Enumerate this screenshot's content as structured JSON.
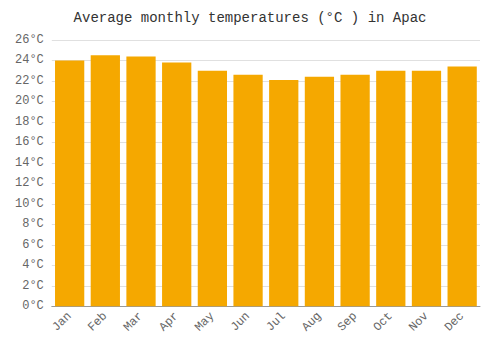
{
  "chart_data": {
    "type": "bar",
    "title": "Average monthly temperatures (°C ) in Apac",
    "categories": [
      "Jan",
      "Feb",
      "Mar",
      "Apr",
      "May",
      "Jun",
      "Jul",
      "Aug",
      "Sep",
      "Oct",
      "Nov",
      "Dec"
    ],
    "values": [
      24.0,
      24.5,
      24.4,
      23.8,
      23.0,
      22.6,
      22.1,
      22.4,
      22.6,
      23.0,
      23.0,
      23.4
    ],
    "color": "#F5A800",
    "ylim": [
      0,
      26
    ],
    "yticks": [
      {
        "value": 0,
        "label": "0°C"
      },
      {
        "value": 2,
        "label": "2°C"
      },
      {
        "value": 4,
        "label": "4°C"
      },
      {
        "value": 6,
        "label": "6°C"
      },
      {
        "value": 8,
        "label": "8°C"
      },
      {
        "value": 10,
        "label": "10°C"
      },
      {
        "value": 12,
        "label": "12°C"
      },
      {
        "value": 14,
        "label": "14°C"
      },
      {
        "value": 16,
        "label": "16°C"
      },
      {
        "value": 18,
        "label": "18°C"
      },
      {
        "value": 20,
        "label": "20°C"
      },
      {
        "value": 22,
        "label": "22°C"
      },
      {
        "value": 24,
        "label": "24°C"
      },
      {
        "value": 26,
        "label": "26°C"
      }
    ],
    "grid": true
  }
}
